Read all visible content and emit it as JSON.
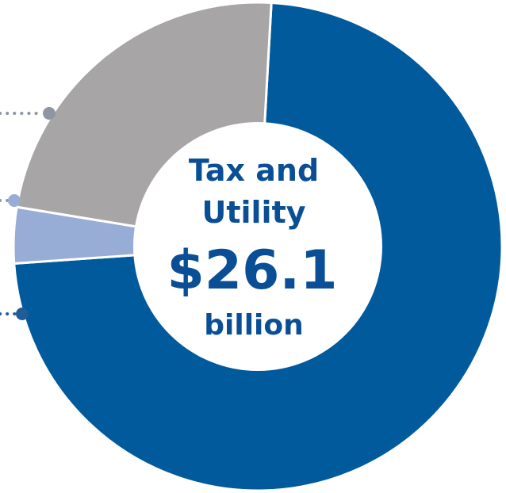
{
  "chart_data": {
    "type": "pie",
    "donut": true,
    "center_label": {
      "line1": "Tax and",
      "line2": "Utility",
      "value": "$26.1",
      "unit": "billion"
    },
    "slices": [
      {
        "value": 73,
        "color": "#005a9c"
      },
      {
        "value": 3.7,
        "color": "#97add6"
      },
      {
        "value": 23.3,
        "color": "#a7a5a5"
      }
    ],
    "start_angle_deg": 3.2,
    "direction": "clockwise",
    "legend": "none"
  },
  "colors": {
    "center_text": "#0a4f95",
    "leader_dots": "#8e96a4",
    "separator": "#ffffff"
  }
}
